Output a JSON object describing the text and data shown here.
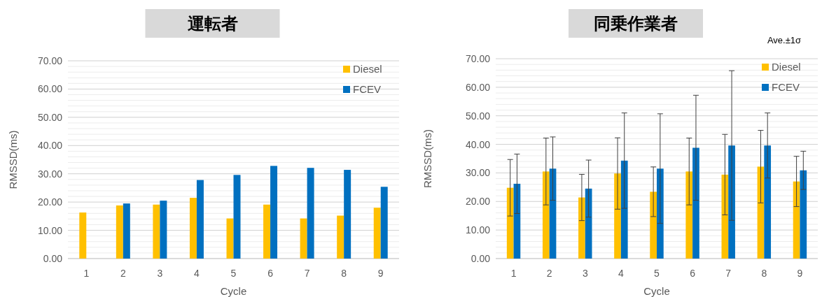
{
  "chart_data": [
    {
      "type": "bar",
      "title": "運転者",
      "xlabel": "Cycle",
      "ylabel": "RMSSD(ms)",
      "categories": [
        "1",
        "2",
        "3",
        "4",
        "5",
        "6",
        "7",
        "8",
        "9"
      ],
      "series": [
        {
          "name": "Diesel",
          "color": "#ffc000",
          "values": [
            16.3,
            18.8,
            19.1,
            21.5,
            14.2,
            19.1,
            14.2,
            15.2,
            18.0
          ]
        },
        {
          "name": "FCEV",
          "color": "#0070c0",
          "values": [
            null,
            19.5,
            20.5,
            27.8,
            29.6,
            32.8,
            32.1,
            31.4,
            25.4
          ]
        }
      ],
      "ylim": [
        0,
        70
      ],
      "yticks": [
        {
          "value": 0,
          "label": "0.00"
        },
        {
          "value": 10,
          "label": "10.00"
        },
        {
          "value": 20,
          "label": "20.00"
        },
        {
          "value": 30,
          "label": "30.00"
        },
        {
          "value": 40,
          "label": "40.00"
        },
        {
          "value": 50,
          "label": "50.00"
        },
        {
          "value": 60,
          "label": "60.00"
        },
        {
          "value": 70,
          "label": "70.00"
        }
      ],
      "grid": "y",
      "legend": "top right"
    },
    {
      "type": "bar",
      "title": "同乗作業者",
      "xlabel": "Cycle",
      "ylabel": "RMSSD(ms)",
      "annotations": [
        "Ave.±1σ"
      ],
      "categories": [
        "1",
        "2",
        "3",
        "4",
        "5",
        "6",
        "7",
        "8",
        "9"
      ],
      "series": [
        {
          "name": "Diesel",
          "color": "#ffc000",
          "values": [
            24.8,
            30.5,
            21.4,
            29.8,
            23.4,
            30.5,
            29.4,
            32.2,
            27.0
          ],
          "errors": [
            9.9,
            11.7,
            8.1,
            12.5,
            8.7,
            11.7,
            14.1,
            12.7,
            8.8
          ]
        },
        {
          "name": "FCEV",
          "color": "#0070c0",
          "values": [
            26.2,
            31.5,
            24.5,
            34.3,
            31.5,
            38.8,
            39.6,
            39.6,
            30.9
          ],
          "errors": [
            10.4,
            11.1,
            10.0,
            16.7,
            19.2,
            18.4,
            26.2,
            11.4,
            6.7
          ]
        }
      ],
      "ylim": [
        0,
        70
      ],
      "yticks": [
        {
          "value": 0,
          "label": "0.00"
        },
        {
          "value": 10,
          "label": "10.00"
        },
        {
          "value": 20,
          "label": "20.00"
        },
        {
          "value": 30,
          "label": "30.00"
        },
        {
          "value": 40,
          "label": "40.00"
        },
        {
          "value": 50,
          "label": "50.00"
        },
        {
          "value": 60,
          "label": "60.00"
        },
        {
          "value": 70,
          "label": "70.00"
        }
      ],
      "grid": "y",
      "legend": "top right"
    }
  ]
}
